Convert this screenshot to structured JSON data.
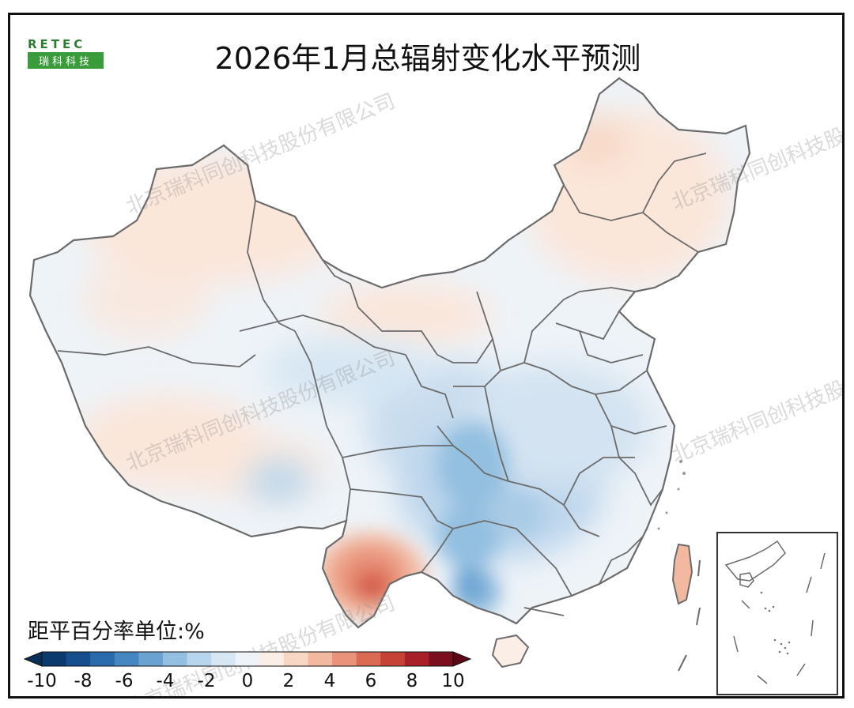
{
  "title": "2026年1月总辐射变化水平预测",
  "logo": {
    "text_en": "RETEC",
    "text_cn": "瑞科科技"
  },
  "watermark": "北京瑞科同创科技股份有限公司",
  "legend": {
    "title": "距平百分率单位:%",
    "ticks": [
      "-10",
      "-8",
      "-6",
      "-4",
      "-2",
      "0",
      "2",
      "4",
      "6",
      "8",
      "10"
    ],
    "colors": [
      "#0b3a6e",
      "#174f8e",
      "#2a6aad",
      "#4686c2",
      "#6aa3d2",
      "#93bfe0",
      "#b7d5ec",
      "#d6e6f3",
      "#eef3f8",
      "#fbeee6",
      "#f7d7c4",
      "#f2b9a0",
      "#e9937a",
      "#db6a55",
      "#c54236",
      "#a82129",
      "#7c0f1e"
    ],
    "under_color": "#0a2f57",
    "over_color": "#5c0715"
  },
  "colors": {
    "border": "#6b6b6b",
    "light_orange": "#fbeee6",
    "light_blue": "#e4edf5"
  },
  "map_fields": {
    "northwest_xinjiang": "slight positive",
    "northeast": "slight positive",
    "sichuan_chongqing_guizhou_guangxi": "negative -2 to -5",
    "southern_yunnan": "positive up to +6",
    "taiwan": "positive ~+3"
  }
}
